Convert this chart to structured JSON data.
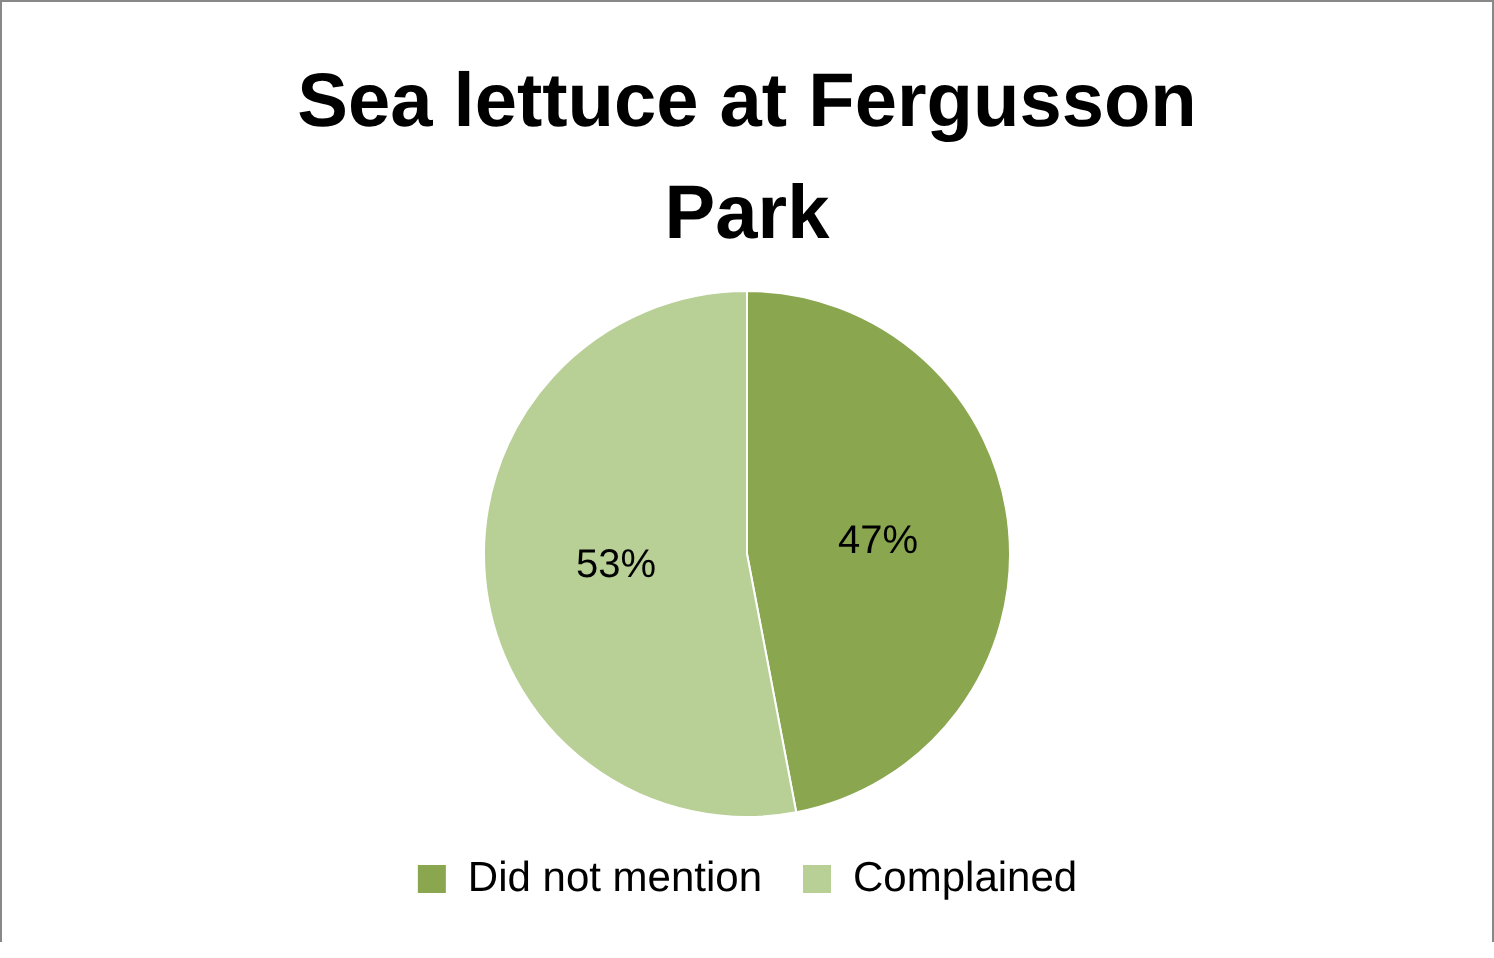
{
  "chart_data": {
    "type": "pie",
    "title": "Sea lettuce at Fergusson Park",
    "categories": [
      "Did not mention",
      "Complained"
    ],
    "values": [
      47,
      53
    ],
    "value_labels": [
      "47%",
      "53%"
    ],
    "colors": [
      "#8aa64f",
      "#b8cf96"
    ],
    "legend": "bottom"
  }
}
